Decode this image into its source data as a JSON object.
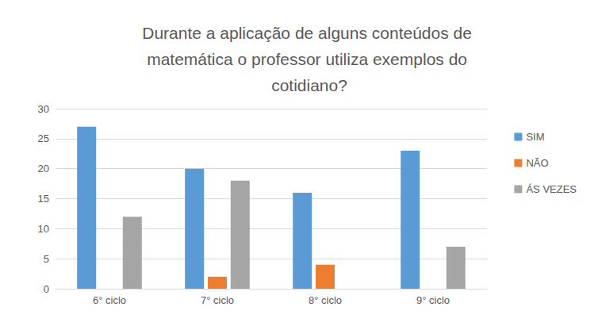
{
  "chart_data": {
    "type": "bar",
    "title": "Durante a aplicação de alguns conteúdos de matemática o professor utiliza exemplos do cotidiano?",
    "categories": [
      "6° ciclo",
      "7° ciclo",
      "8° ciclo",
      "9° ciclo"
    ],
    "series": [
      {
        "name": "SIM",
        "color": "#5B9BD5",
        "values": [
          27,
          20,
          16,
          23
        ]
      },
      {
        "name": "NÃO",
        "color": "#ED7D31",
        "values": [
          0,
          2,
          4,
          0
        ]
      },
      {
        "name": "ÁS VEZES",
        "color": "#A5A5A5",
        "values": [
          12,
          18,
          0,
          7
        ]
      }
    ],
    "ylim": [
      0,
      30
    ],
    "yticks": [
      0,
      5,
      10,
      15,
      20,
      25,
      30
    ],
    "grid": true,
    "legend": "right"
  }
}
